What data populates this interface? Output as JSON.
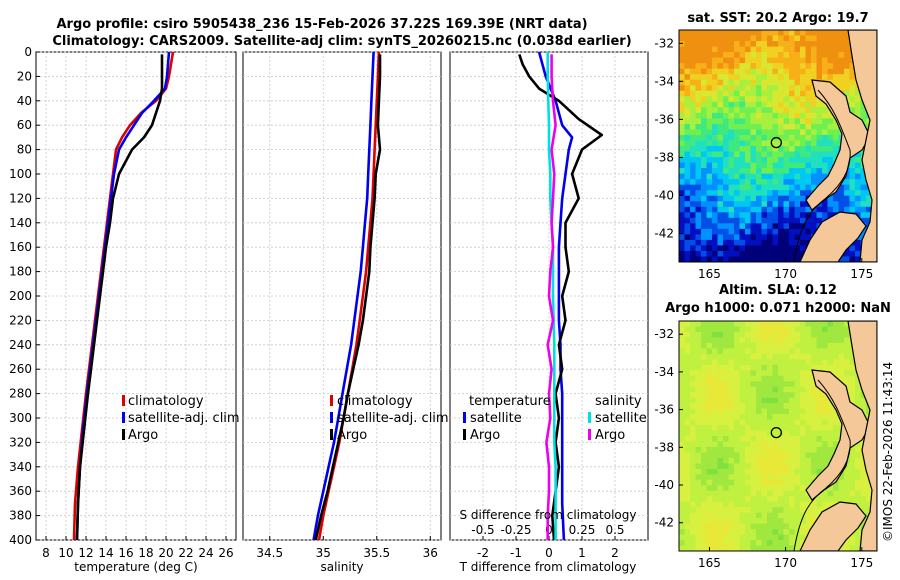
{
  "header": {
    "title_line1": "Argo profile: csiro 5905438_236 15-Feb-2026 37.22S 169.39E (NRT data)",
    "title_line2": "Climatology: CARS2009. Satellite-adj clim: synTS_20260215.nc (0.038d earlier)"
  },
  "colors": {
    "climatology": "#dd0000",
    "satellite": "#0000ee",
    "argo": "#000000",
    "sal_sat": "#00e0e0",
    "sal_argo": "#ee00ee",
    "land": "#f5c89a"
  },
  "chart_data": [
    {
      "id": "temperature",
      "type": "line",
      "xlabel": "temperature (deg C)",
      "xlim": [
        7,
        27
      ],
      "xticks": [
        8,
        10,
        12,
        14,
        16,
        18,
        20,
        22,
        24,
        26
      ],
      "ylim": [
        0,
        400
      ],
      "yticks": [
        0,
        20,
        40,
        60,
        80,
        100,
        120,
        140,
        160,
        180,
        200,
        220,
        240,
        260,
        280,
        300,
        320,
        340,
        360,
        380,
        400
      ],
      "legend": [
        "climatology",
        "satellite-adj. clim",
        "Argo"
      ],
      "series": [
        {
          "name": "climatology",
          "color": "#dd0000",
          "x": [
            20.7,
            20.5,
            20.3,
            20.0,
            19.0,
            17.5,
            16.4,
            15.6,
            15.0,
            14.7,
            14.4,
            14.1,
            13.8,
            13.5,
            13.2,
            12.9,
            12.6,
            12.3,
            12.0,
            11.6,
            11.2,
            10.9,
            10.8
          ],
          "y": [
            0,
            10,
            20,
            30,
            40,
            50,
            60,
            70,
            80,
            100,
            120,
            140,
            160,
            180,
            200,
            220,
            240,
            260,
            280,
            310,
            340,
            370,
            400
          ]
        },
        {
          "name": "satellite-adj. clim",
          "color": "#0000ee",
          "x": [
            20.3,
            20.2,
            20.1,
            19.9,
            18.8,
            17.6,
            16.8,
            16.0,
            15.3,
            14.8,
            14.5,
            14.2,
            13.9,
            13.6,
            13.3,
            13.0,
            12.7,
            12.4,
            12.1,
            11.7,
            11.4,
            11.2,
            11.1
          ],
          "y": [
            0,
            10,
            20,
            30,
            40,
            50,
            60,
            70,
            80,
            100,
            120,
            140,
            160,
            180,
            200,
            220,
            240,
            260,
            280,
            310,
            340,
            370,
            400
          ]
        },
        {
          "name": "Argo",
          "color": "#000000",
          "x": [
            19.6,
            19.6,
            19.6,
            19.6,
            19.4,
            19.0,
            18.6,
            17.8,
            16.6,
            15.3,
            14.7,
            14.4,
            14.0,
            13.7,
            13.4,
            13.1,
            12.8,
            12.5,
            12.2,
            11.8,
            11.4,
            11.2,
            11.1
          ],
          "y": [
            2,
            10,
            20,
            30,
            40,
            50,
            60,
            70,
            80,
            100,
            120,
            140,
            160,
            180,
            200,
            220,
            240,
            260,
            280,
            310,
            340,
            370,
            400
          ]
        }
      ]
    },
    {
      "id": "salinity",
      "type": "line",
      "xlabel": "salinity",
      "xlim": [
        34.25,
        36.1
      ],
      "xticks": [
        34.5,
        35,
        35.5,
        36
      ],
      "ylim": [
        0,
        400
      ],
      "legend": [
        "climatology",
        "satellite-adj. clim",
        "Argo"
      ],
      "series": [
        {
          "name": "climatology",
          "color": "#dd0000",
          "x": [
            35.52,
            35.51,
            35.5,
            35.49,
            35.48,
            35.47,
            35.46,
            35.44,
            35.42,
            35.4,
            35.37,
            35.34,
            35.31,
            35.27,
            35.23,
            35.19,
            35.15,
            35.1,
            35.05,
            35.0,
            34.96
          ],
          "y": [
            0,
            20,
            40,
            60,
            80,
            100,
            120,
            140,
            160,
            180,
            200,
            220,
            240,
            260,
            280,
            300,
            320,
            340,
            360,
            380,
            400
          ]
        },
        {
          "name": "satellite-adj. clim",
          "color": "#0000ee",
          "x": [
            35.47,
            35.46,
            35.45,
            35.44,
            35.43,
            35.42,
            35.41,
            35.39,
            35.37,
            35.35,
            35.32,
            35.29,
            35.26,
            35.22,
            35.18,
            35.14,
            35.1,
            35.05,
            35.0,
            34.95,
            34.91
          ],
          "y": [
            0,
            20,
            40,
            60,
            80,
            100,
            120,
            140,
            160,
            180,
            200,
            220,
            240,
            260,
            280,
            300,
            320,
            340,
            360,
            380,
            400
          ]
        },
        {
          "name": "Argo",
          "color": "#000000",
          "x": [
            35.53,
            35.53,
            35.52,
            35.51,
            35.53,
            35.49,
            35.48,
            35.46,
            35.44,
            35.43,
            35.4,
            35.37,
            35.33,
            35.28,
            35.23,
            35.19,
            35.14,
            35.09,
            35.04,
            34.98,
            34.93
          ],
          "y": [
            2,
            20,
            40,
            60,
            80,
            100,
            120,
            140,
            160,
            180,
            200,
            220,
            240,
            260,
            280,
            300,
            320,
            340,
            360,
            380,
            400
          ]
        }
      ]
    },
    {
      "id": "differences",
      "type": "line",
      "xlabel": "T difference from climatology",
      "xlim": [
        -3,
        3
      ],
      "xticks": [
        -2,
        -1,
        0,
        1,
        2
      ],
      "top_label": "S difference from climatology",
      "top_ticks": [
        "-0.5",
        "-0.25",
        "0",
        "0.25",
        "0.5"
      ],
      "top_tick_values": [
        -0.5,
        -0.25,
        0,
        0.25,
        0.5
      ],
      "s_xlim": [
        -0.75,
        0.75
      ],
      "ylim": [
        0,
        400
      ],
      "legend_left_title": "temperature",
      "legend_left": [
        "satellite",
        "Argo"
      ],
      "legend_right_title": "salinity",
      "legend_right": [
        "satellite",
        "Argo"
      ],
      "series": [
        {
          "name": "T satellite",
          "color": "#0000ee",
          "x": [
            -0.3,
            -0.2,
            -0.1,
            0.2,
            0.4,
            0.7,
            0.6,
            0.5,
            0.4,
            0.35,
            0.3,
            0.3,
            0.3,
            0.3,
            0.35,
            0.35,
            0.4,
            0.4,
            0.4,
            0.4,
            0.4,
            0.45
          ],
          "y": [
            0,
            10,
            20,
            40,
            60,
            70,
            80,
            100,
            120,
            140,
            160,
            180,
            200,
            220,
            240,
            260,
            280,
            300,
            320,
            340,
            370,
            400
          ]
        },
        {
          "name": "T Argo",
          "color": "#000000",
          "x": [
            -0.9,
            -0.8,
            -0.6,
            -0.3,
            0.3,
            0.9,
            1.6,
            1.0,
            0.7,
            0.9,
            0.5,
            0.5,
            0.6,
            0.4,
            0.5,
            0.3,
            0.4,
            0.2,
            0.3,
            0.2,
            0.3,
            0.2,
            0.1,
            0.15
          ],
          "y": [
            2,
            10,
            20,
            30,
            40,
            55,
            68,
            80,
            100,
            120,
            140,
            160,
            180,
            200,
            220,
            240,
            260,
            280,
            300,
            320,
            340,
            360,
            380,
            400
          ]
        },
        {
          "name": "S satellite",
          "color": "#00e0e0",
          "x": [
            -0.01,
            -0.01,
            -0.005,
            0,
            0,
            0.01,
            0.01,
            0.02,
            0.03,
            0.03,
            0.03,
            0.04,
            0.04,
            0.04,
            0.04,
            0.05,
            0.05,
            0.05
          ],
          "y": [
            0,
            20,
            40,
            60,
            80,
            100,
            120,
            140,
            160,
            180,
            200,
            240,
            280,
            300,
            320,
            340,
            370,
            400
          ]
        },
        {
          "name": "S Argo",
          "color": "#ee00ee",
          "x": [
            0.02,
            0.02,
            0.03,
            0.05,
            0.02,
            0.04,
            0.03,
            0.02,
            0.03,
            0.01,
            0.0,
            0.03,
            -0.01,
            0.02,
            0.0,
            0.01,
            -0.02,
            0.0,
            0.0,
            -0.01,
            -0.01
          ],
          "y": [
            2,
            20,
            40,
            60,
            80,
            100,
            120,
            140,
            160,
            180,
            200,
            220,
            240,
            260,
            280,
            300,
            320,
            340,
            360,
            380,
            400
          ]
        }
      ]
    },
    {
      "id": "sst_map",
      "type": "heatmap",
      "title": "sat. SST: 20.2 Argo: 19.7",
      "xlim": [
        163,
        176
      ],
      "ylim": [
        -43.5,
        -31.3
      ],
      "xticks": [
        165,
        170,
        175
      ],
      "yticks": [
        -32,
        -34,
        -36,
        -38,
        -40,
        -42
      ],
      "float_marker": {
        "lon": 169.39,
        "lat": -37.22
      }
    },
    {
      "id": "sla_map",
      "type": "heatmap",
      "title_line1": "Altim. SLA: 0.12",
      "title_line2": "Argo h1000: 0.071 h2000: NaN",
      "xlim": [
        163,
        176
      ],
      "ylim": [
        -43.5,
        -31.3
      ],
      "xticks": [
        165,
        170,
        175
      ],
      "yticks": [
        -32,
        -34,
        -36,
        -38,
        -40,
        -42
      ],
      "float_marker": {
        "lon": 169.39,
        "lat": -37.22
      }
    }
  ],
  "footer": {
    "stamp": "©IMOS 22-Feb-2026 11:43:14"
  }
}
